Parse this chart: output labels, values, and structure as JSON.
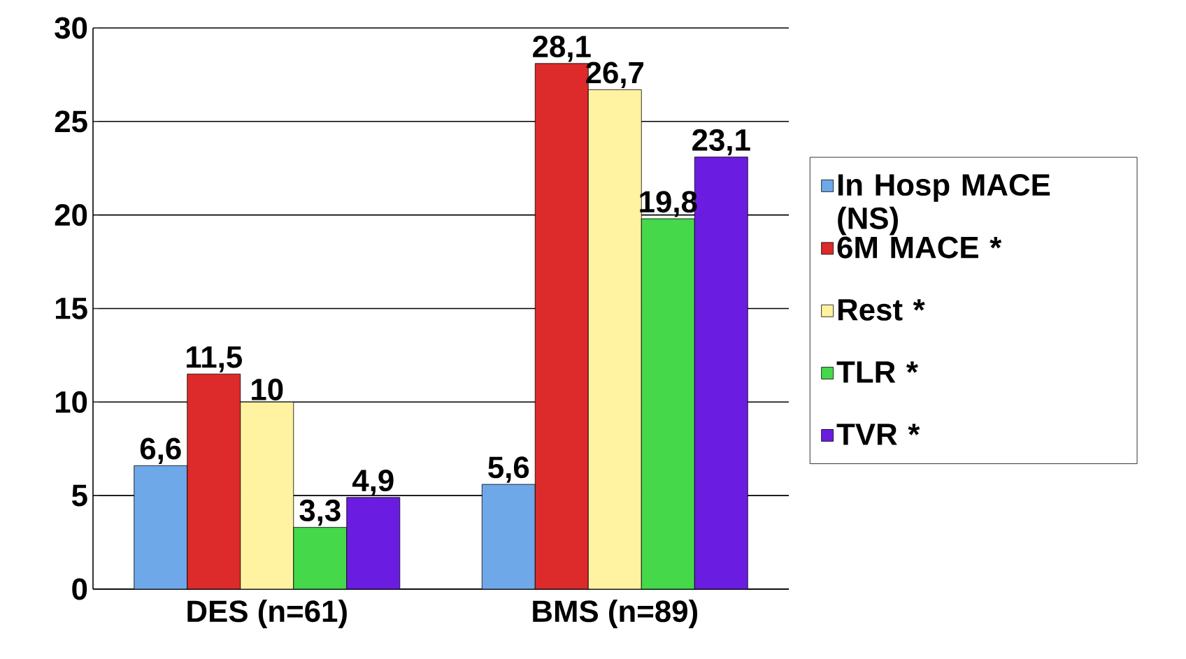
{
  "chart_data": {
    "type": "bar",
    "categories": [
      "DES (n=61)",
      "BMS (n=89)"
    ],
    "series": [
      {
        "name": "In Hosp MACE (NS)",
        "color": "#6fa8e8",
        "values": [
          6.6,
          5.6
        ],
        "value_labels": [
          "6,6",
          "5,6"
        ]
      },
      {
        "name": "6M MACE *",
        "color": "#dd2a2a",
        "values": [
          11.5,
          28.1
        ],
        "value_labels": [
          "11,5",
          "28,1"
        ]
      },
      {
        "name": "Rest *",
        "color": "#fff2a0",
        "values": [
          10,
          26.7
        ],
        "value_labels": [
          "10",
          "26,7"
        ]
      },
      {
        "name": "TLR *",
        "color": "#44d84a",
        "values": [
          3.3,
          19.8
        ],
        "value_labels": [
          "3,3",
          "19,8"
        ]
      },
      {
        "name": "TVR *",
        "color": "#6a1de0",
        "values": [
          4.9,
          23.1
        ],
        "value_labels": [
          "4,9",
          "23,1"
        ]
      }
    ],
    "ylim": [
      0,
      30
    ],
    "yticks": [
      0,
      5,
      10,
      15,
      20,
      25,
      30
    ],
    "grid": "y",
    "legend": "right"
  }
}
